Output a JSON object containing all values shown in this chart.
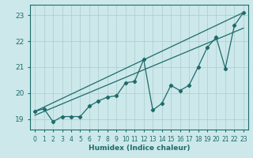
{
  "xlabel": "Humidex (Indice chaleur)",
  "bg_color": "#cce8ea",
  "grid_color": "#aacccc",
  "line_color": "#1e6b6b",
  "xlim": [
    -0.5,
    23.5
  ],
  "ylim": [
    18.6,
    23.4
  ],
  "yticks": [
    19,
    20,
    21,
    22,
    23
  ],
  "xticks": [
    0,
    1,
    2,
    3,
    4,
    5,
    6,
    7,
    8,
    9,
    10,
    11,
    12,
    13,
    14,
    15,
    16,
    17,
    18,
    19,
    20,
    21,
    22,
    23
  ],
  "data_x": [
    0,
    1,
    2,
    3,
    4,
    5,
    6,
    7,
    8,
    9,
    10,
    11,
    12,
    13,
    14,
    15,
    16,
    17,
    18,
    19,
    20,
    21,
    22,
    23
  ],
  "data_y": [
    19.3,
    19.4,
    18.9,
    19.1,
    19.1,
    19.1,
    19.5,
    19.7,
    19.85,
    19.9,
    20.4,
    20.45,
    21.3,
    19.35,
    19.6,
    20.3,
    20.1,
    20.3,
    21.0,
    21.75,
    22.15,
    20.95,
    22.6,
    23.1
  ],
  "line1_x": [
    0,
    23
  ],
  "line1_y": [
    19.3,
    23.1
  ],
  "line2_x": [
    0,
    23
  ],
  "line2_y": [
    19.15,
    22.5
  ]
}
